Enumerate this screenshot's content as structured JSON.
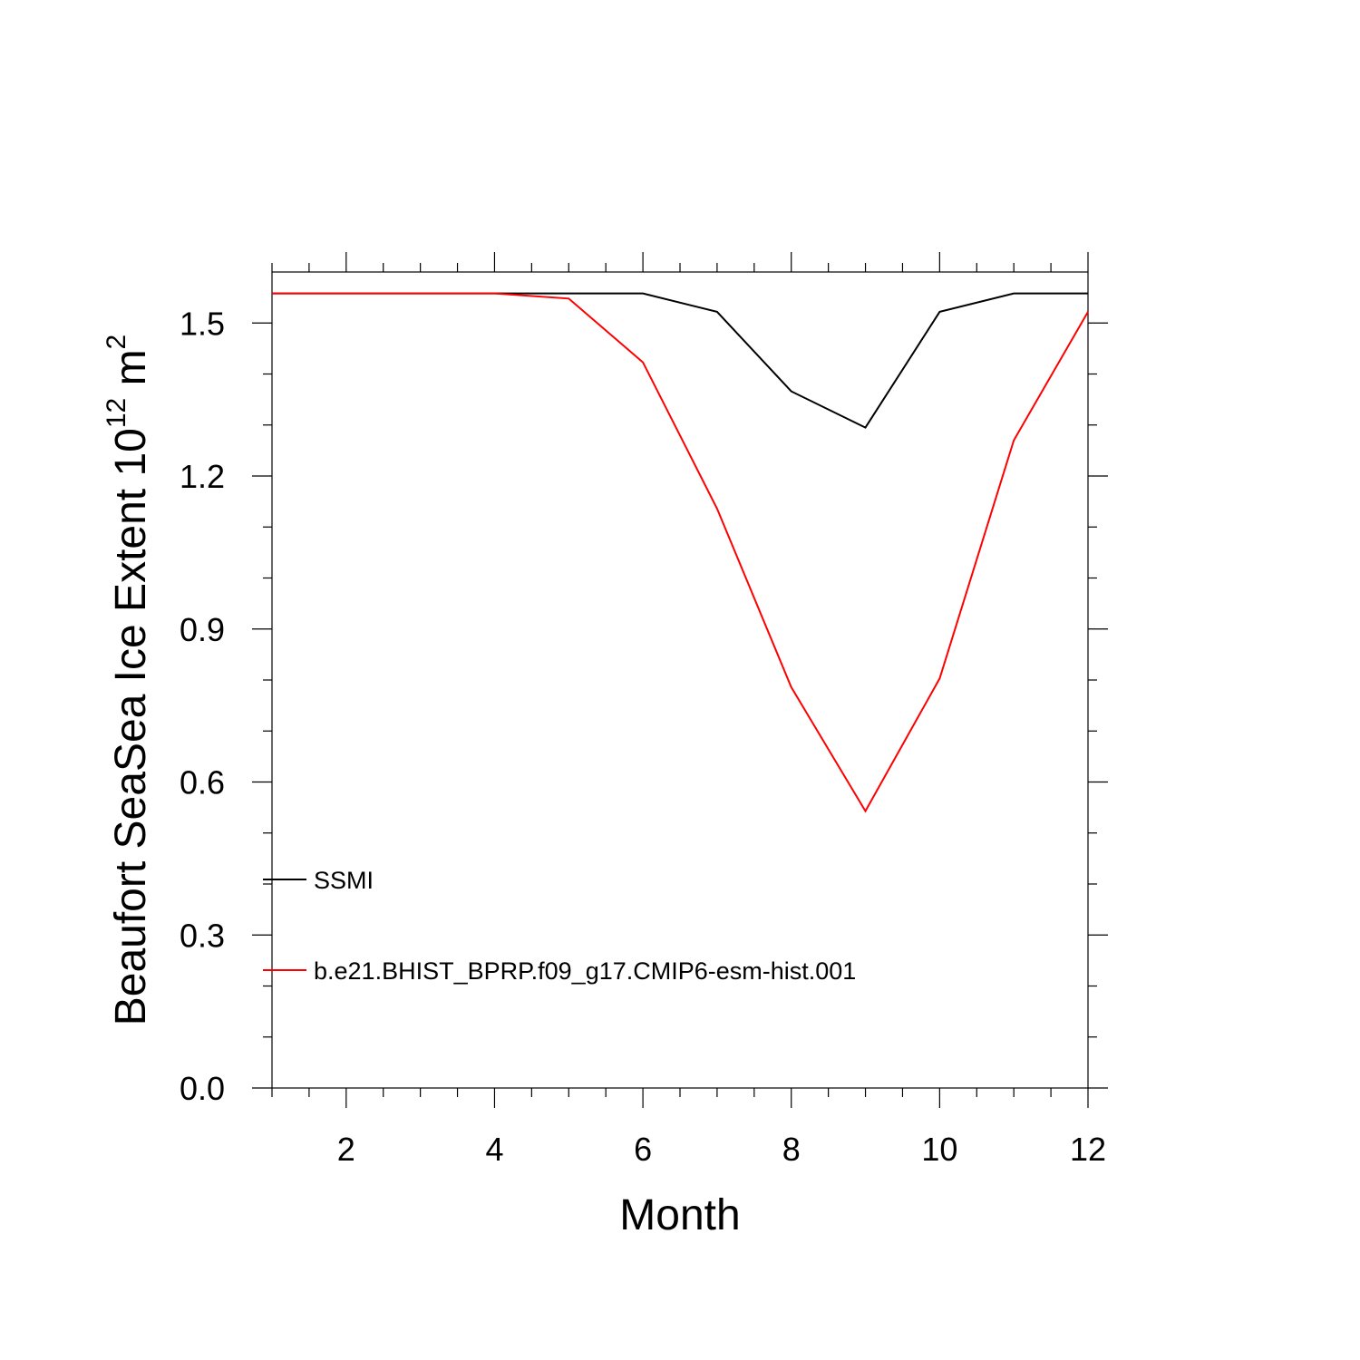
{
  "chart_data": {
    "type": "line",
    "title": "",
    "xlabel": "Month",
    "ylabel": {
      "prefix": "Beaufort SeaSea Ice Extent 10",
      "exponent": "12",
      "unit": " m",
      "unit_exponent": "2"
    },
    "xlim": [
      1,
      12
    ],
    "ylim": [
      0,
      1.6
    ],
    "x_ticks": [
      2,
      4,
      6,
      8,
      10,
      12
    ],
    "x_tick_labels": [
      "2",
      "4",
      "6",
      "8",
      "10",
      "12"
    ],
    "y_ticks": [
      0,
      0.3,
      0.6,
      0.9,
      1.2,
      1.5
    ],
    "y_tick_labels": [
      "0.0",
      "0.3",
      "0.6",
      "0.9",
      "1.2",
      "1.5"
    ],
    "grid": false,
    "legend_position": "lower-left inside",
    "x": [
      1,
      2,
      3,
      4,
      5,
      6,
      7,
      8,
      9,
      10,
      11,
      12
    ],
    "series": [
      {
        "name": "SSMI",
        "color": "#000000",
        "values": [
          1.558,
          1.558,
          1.558,
          1.558,
          1.558,
          1.558,
          1.522,
          1.366,
          1.295,
          1.522,
          1.558,
          1.558
        ]
      },
      {
        "name": "b.e21.BHIST_BPRP.f09_g17.CMIP6-esm-hist.001",
        "color": "#ff0000",
        "values": [
          1.558,
          1.558,
          1.558,
          1.558,
          1.548,
          1.423,
          1.136,
          0.786,
          0.543,
          0.803,
          1.27,
          1.522
        ]
      }
    ]
  }
}
